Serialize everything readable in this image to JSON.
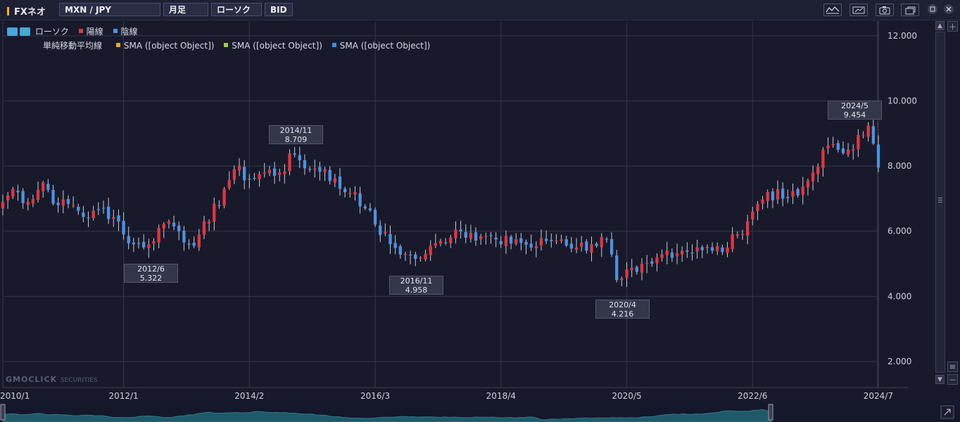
{
  "toolbar": {
    "brand": "FXネオ",
    "pair": "MXN / JPY",
    "period": "月足",
    "chart_style": "ローソク",
    "price_type": "BID"
  },
  "legend": {
    "candle_label": "ローソク",
    "up_label": "陽線",
    "down_label": "陰線",
    "sma_group_label": "単純移動平均線",
    "sma1": "SMA ([object Object])",
    "sma2": "SMA ([object Object])",
    "sma3": "SMA ([object Object])"
  },
  "watermark": {
    "main": "GMOCLICK",
    "sub": "SECURITIES"
  },
  "colors": {
    "up": "#e2373c",
    "down": "#4c93e4",
    "sma1": "#e8a532",
    "sma2": "#9fd040",
    "sma3": "#3e8fe0",
    "background": "#181a2c"
  },
  "icons": [
    "indicator-icon",
    "draw-icon",
    "camera-icon",
    "window-icon",
    "maximize-icon",
    "close-icon"
  ],
  "chart_data": {
    "type": "candlestick",
    "title": "MXN / JPY",
    "interval": "monthly",
    "ylim": [
      1.2,
      12.45
    ],
    "y_ticks": [
      "12.000",
      "10.000",
      "8.000",
      "6.000",
      "4.000",
      "2.000"
    ],
    "x_ticks": [
      "2010/1",
      "2012/1",
      "2014/2",
      "2016/3",
      "2018/4",
      "2020/5",
      "2022/6",
      "2024/7"
    ],
    "grid": true,
    "legend_position": "top-left",
    "annotations": [
      {
        "label": "2012/6",
        "value": "5.322"
      },
      {
        "label": "2014/11",
        "value": "8.709"
      },
      {
        "label": "2016/11",
        "value": "4.958"
      },
      {
        "label": "2020/4",
        "value": "4.216"
      },
      {
        "label": "2024/5",
        "value": "9.454"
      }
    ],
    "anchors": [
      [
        "2010/1",
        6.9
      ],
      [
        "2010/3",
        7.3
      ],
      [
        "2010/6",
        6.9
      ],
      [
        "2010/9",
        7.5
      ],
      [
        "2010/12",
        6.8
      ],
      [
        "2011/3",
        6.8
      ],
      [
        "2011/6",
        6.4
      ],
      [
        "2011/9",
        6.7
      ],
      [
        "2011/12",
        6.3
      ],
      [
        "2012/1",
        5.9
      ],
      [
        "2012/3",
        5.6
      ],
      [
        "2012/5",
        5.5
      ],
      [
        "2012/6",
        5.6
      ],
      [
        "2012/8",
        6.1
      ],
      [
        "2012/10",
        6.3
      ],
      [
        "2012/12",
        6.0
      ],
      [
        "2013/2",
        5.6
      ],
      [
        "2013/4",
        5.9
      ],
      [
        "2013/6",
        6.3
      ],
      [
        "2013/9",
        7.3
      ],
      [
        "2013/11",
        7.9
      ],
      [
        "2014/2",
        7.6
      ],
      [
        "2014/5",
        7.8
      ],
      [
        "2014/8",
        7.8
      ],
      [
        "2014/11",
        8.35
      ],
      [
        "2015/2",
        7.9
      ],
      [
        "2015/5",
        7.9
      ],
      [
        "2015/8",
        7.3
      ],
      [
        "2015/11",
        7.2
      ],
      [
        "2016/1",
        6.7
      ],
      [
        "2016/3",
        6.2
      ],
      [
        "2016/6",
        5.6
      ],
      [
        "2016/9",
        5.3
      ],
      [
        "2016/11",
        5.15
      ],
      [
        "2017/1",
        5.3
      ],
      [
        "2017/4",
        5.7
      ],
      [
        "2017/7",
        6.05
      ],
      [
        "2017/10",
        5.95
      ],
      [
        "2018/1",
        5.85
      ],
      [
        "2018/4",
        5.6
      ],
      [
        "2018/7",
        5.75
      ],
      [
        "2018/10",
        5.5
      ],
      [
        "2019/1",
        5.7
      ],
      [
        "2019/4",
        5.75
      ],
      [
        "2019/7",
        5.5
      ],
      [
        "2019/10",
        5.6
      ],
      [
        "2020/1",
        5.75
      ],
      [
        "2020/3",
        4.5
      ],
      [
        "2020/4",
        4.55
      ],
      [
        "2020/7",
        4.75
      ],
      [
        "2020/10",
        5.0
      ],
      [
        "2021/1",
        5.4
      ],
      [
        "2021/4",
        5.4
      ],
      [
        "2021/7",
        5.5
      ],
      [
        "2021/10",
        5.4
      ],
      [
        "2022/1",
        5.5
      ],
      [
        "2022/3",
        5.9
      ],
      [
        "2022/6",
        6.6
      ],
      [
        "2022/9",
        7.2
      ],
      [
        "2022/12",
        7.0
      ],
      [
        "2023/3",
        7.1
      ],
      [
        "2023/6",
        7.8
      ],
      [
        "2023/8",
        8.5
      ],
      [
        "2023/11",
        8.5
      ],
      [
        "2024/1",
        8.5
      ],
      [
        "2024/3",
        8.95
      ],
      [
        "2024/5",
        9.25
      ],
      [
        "2024/7",
        7.95
      ]
    ]
  }
}
